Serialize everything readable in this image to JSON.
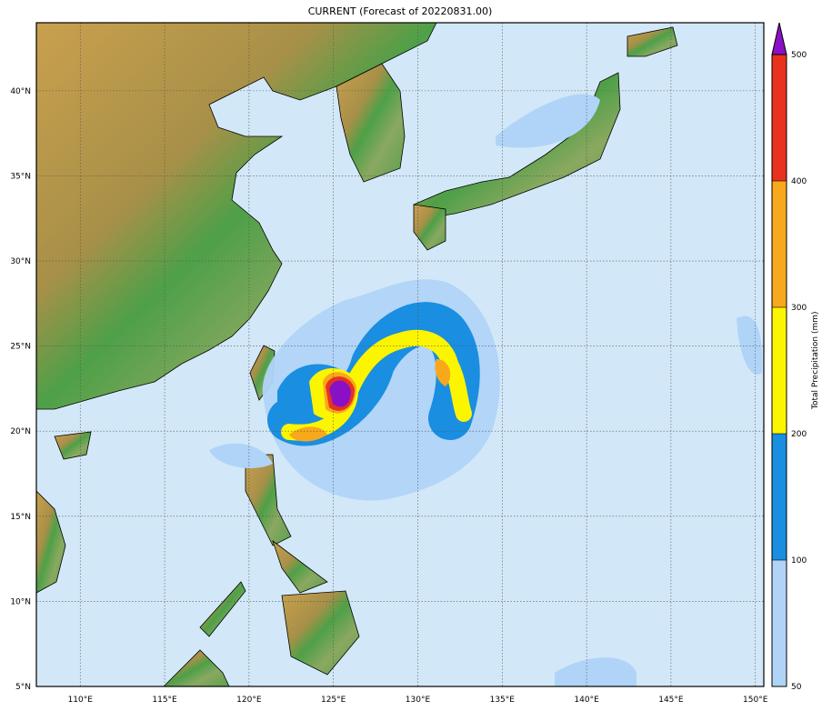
{
  "title": "CURRENT (Forecast of 20220831.00)",
  "map": {
    "lon_range": [
      107.4,
      150.5
    ],
    "lat_range": [
      5,
      44
    ],
    "lon_ticks": [
      "110°E",
      "115°E",
      "120°E",
      "125°E",
      "130°E",
      "135°E",
      "140°E",
      "145°E",
      "150°E"
    ],
    "lon_values": [
      110,
      115,
      120,
      125,
      130,
      135,
      140,
      145,
      150
    ],
    "lat_ticks": [
      "5°N",
      "10°N",
      "15°N",
      "20°N",
      "25°N",
      "30°N",
      "35°N",
      "40°N"
    ],
    "lat_values": [
      5,
      10,
      15,
      20,
      25,
      30,
      35,
      40
    ],
    "ocean_color": "#d2e8f8",
    "grid": true
  },
  "colorbar": {
    "label": "Total Precipitation (mm)",
    "levels": [
      "50",
      "100",
      "200",
      "300",
      "400",
      "500"
    ],
    "level_values": [
      50,
      100,
      200,
      300,
      400,
      500
    ],
    "colors": [
      "#b0d4f8",
      "#1a8ee0",
      "#fcf500",
      "#f8a81c",
      "#e8321e"
    ],
    "extend_color": "#8a10c8",
    "extend": "max"
  }
}
